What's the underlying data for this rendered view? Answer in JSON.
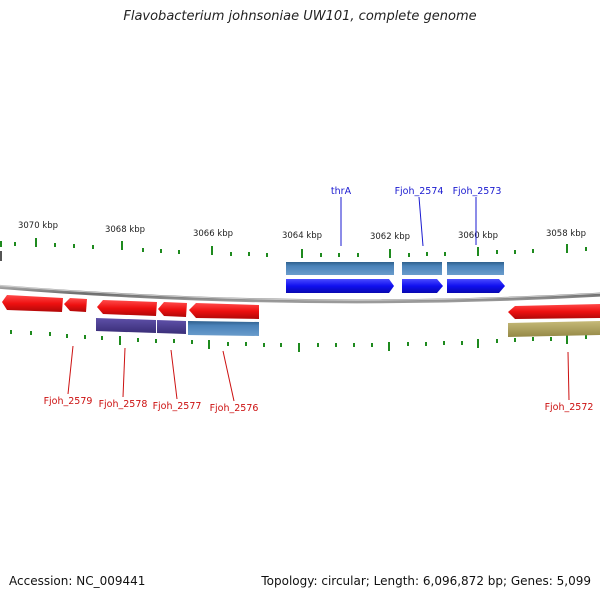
{
  "title": "Flavobacterium johnsoniae UW101, complete genome",
  "footer": {
    "accession": "Accession: NC_009441",
    "summary": "Topology: circular; Length: 6,096,872 bp; Genes: 5,099"
  },
  "scale_labels": [
    "3070 kbp",
    "3068 kbp",
    "3066 kbp",
    "3064 kbp",
    "3062 kbp",
    "3060 kbp",
    "3058 kbp"
  ],
  "gene_labels_top": [
    "thrA",
    "Fjoh_2574",
    "Fjoh_2573"
  ],
  "gene_labels_bottom": [
    "Fjoh_2579",
    "Fjoh_2578",
    "Fjoh_2577",
    "Fjoh_2576",
    "Fjoh_2572"
  ],
  "colors": {
    "forward_cds": "#1010f0",
    "reverse_cds": "#ee1010",
    "forward_feature": "#4a82b8",
    "reverse_feature_a": "#4a3d8c",
    "reverse_feature_b": "#4a82b8",
    "reverse_feature_c": "#aca05a",
    "backbone": "#8a8a8a",
    "ticks": "#1e8a1e"
  }
}
